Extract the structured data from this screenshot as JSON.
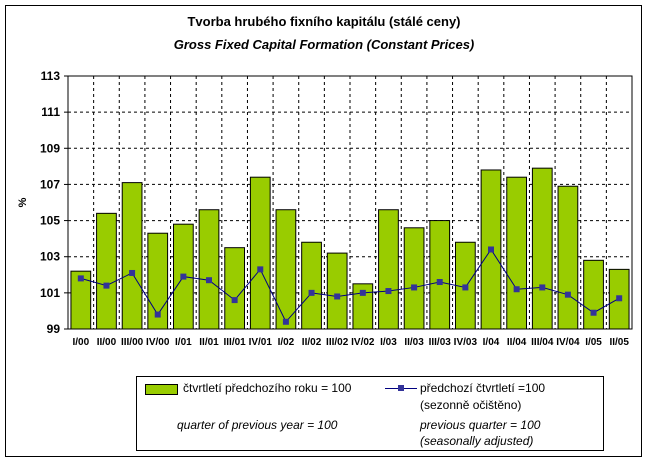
{
  "chart_data": {
    "type": "bar",
    "title": "Tvorba hrubého fixního kapitálu (stálé ceny)",
    "subtitle": "Gross Fixed Capital Formation (Constant Prices)",
    "ylabel": "%",
    "ylim": [
      99,
      113
    ],
    "yticks": [
      99,
      101,
      103,
      105,
      107,
      109,
      111,
      113
    ],
    "grid": true,
    "legend_position": "bottom",
    "categories": [
      "I/00",
      "II/00",
      "III/00",
      "IV/00",
      "I/01",
      "II/01",
      "III/01",
      "IV/01",
      "I/02",
      "II/02",
      "III/02",
      "IV/02",
      "I/03",
      "II/03",
      "III/03",
      "IV/03",
      "I/04",
      "II/04",
      "III/04",
      "IV/04",
      "I/05",
      "II/05"
    ],
    "series": [
      {
        "name": "čtvrtletí předchozího roku = 100",
        "name_en": "quarter of previous year = 100",
        "kind": "bar",
        "color": "#99cc00",
        "values": [
          102.2,
          105.4,
          107.1,
          104.3,
          104.8,
          105.6,
          103.5,
          107.4,
          105.6,
          103.8,
          103.2,
          101.5,
          105.6,
          104.6,
          105.0,
          103.8,
          107.8,
          107.4,
          107.9,
          106.9,
          102.8,
          102.3
        ]
      },
      {
        "name": "předchozí čtvrtletí =100",
        "name_sub": "(sezonně očištěno)",
        "name_en": "previous quarter = 100",
        "name_en_sub": "(seasonally adjusted)",
        "kind": "line",
        "color": "#000080",
        "marker_color": "#333399",
        "values": [
          101.8,
          101.4,
          102.1,
          99.8,
          101.9,
          101.7,
          100.6,
          102.3,
          99.4,
          101.0,
          100.8,
          101.0,
          101.1,
          101.3,
          101.6,
          101.3,
          103.4,
          101.2,
          101.3,
          100.9,
          99.9,
          100.7
        ]
      }
    ]
  }
}
